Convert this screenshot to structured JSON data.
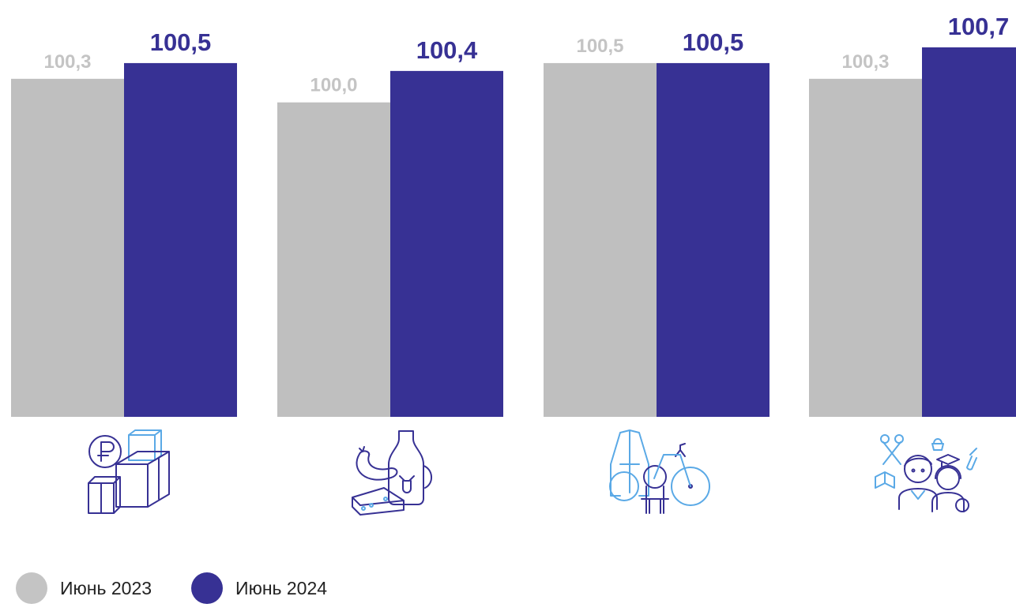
{
  "colors": {
    "series_2023": "#bfbfbf",
    "series_2024": "#373194",
    "icon_dark": "#373194",
    "icon_light": "#5aa9e6"
  },
  "chart_data": {
    "type": "bar",
    "categories": [
      "",
      "",
      "",
      ""
    ],
    "category_icons": [
      "money-boxes-icon",
      "food-icon",
      "nonfood-goods-icon",
      "services-icon"
    ],
    "series": [
      {
        "name": "Июнь 2023",
        "values": [
          100.3,
          100.0,
          100.5,
          100.3
        ],
        "labels": [
          "100,3",
          "100,0",
          "100,5",
          "100,3"
        ]
      },
      {
        "name": "Июнь 2024",
        "values": [
          100.5,
          100.4,
          100.5,
          100.7
        ],
        "labels": [
          "100,5",
          "100,4",
          "100,5",
          "100,7"
        ]
      }
    ],
    "title": "",
    "xlabel": "",
    "ylabel": "",
    "ylim": [
      96,
      100.7
    ],
    "grid": false,
    "legend": "bottom-left"
  },
  "legend": {
    "items": [
      "Июнь 2023",
      "Июнь 2024"
    ]
  }
}
